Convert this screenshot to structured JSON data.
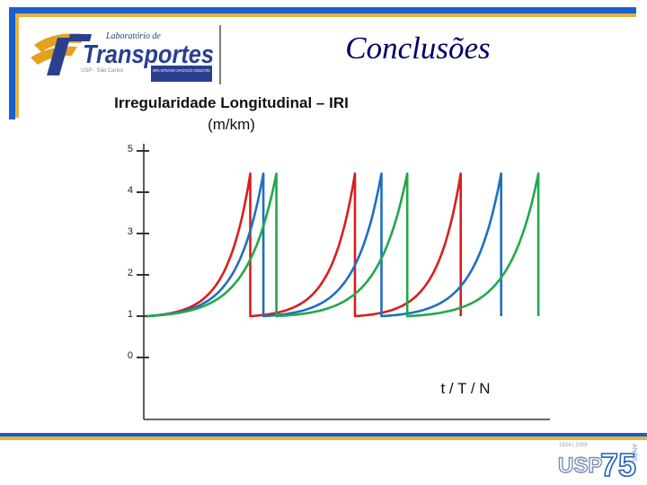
{
  "slide": {
    "title": "Conclusões"
  },
  "logo": {
    "top_text": "Laboratório de",
    "main_text": "Transportes",
    "sub_text": "USP · São Carlos",
    "tag_text": "INFRA-ESTRUTURA CAPACITAÇÃO CONSULTORIA"
  },
  "usp_logo": {
    "years_text": "1934 | 2009",
    "main_text": "USP",
    "number_text": "75",
    "side_text": "ANOS"
  },
  "colors": {
    "header_blue": "#1a5fd0",
    "header_gold": "#e8b23a",
    "title": "#000066",
    "axis": "#333333"
  },
  "chart_data": {
    "type": "line",
    "title": "Irregularidade Longitudinal – IRI",
    "title_line2": "(m/km)",
    "xlabel": "t / T / N",
    "ylabel": "",
    "ylim": [
      0,
      5
    ],
    "yticks": [
      "0",
      "1",
      "2",
      "3",
      "4",
      "5"
    ],
    "xlim": [
      0,
      100
    ],
    "grid": false,
    "series": [
      {
        "color": "#d81e1e",
        "points": [
          [
            0,
            1
          ],
          [
            26.2,
            4.45
          ],
          [
            26.2,
            1
          ],
          [
            52.6,
            4.45
          ],
          [
            52.6,
            1
          ],
          [
            79.3,
            4.45
          ],
          [
            79.3,
            1
          ]
        ]
      },
      {
        "color": "#1f6fc0",
        "points": [
          [
            0,
            1
          ],
          [
            29.5,
            4.45
          ],
          [
            29.5,
            1
          ],
          [
            59.3,
            4.45
          ],
          [
            59.3,
            1
          ],
          [
            89.5,
            4.45
          ],
          [
            89.5,
            1
          ]
        ]
      },
      {
        "color": "#22a84a",
        "points": [
          [
            0,
            1
          ],
          [
            32.8,
            4.45
          ],
          [
            32.8,
            1
          ],
          [
            65.8,
            4.45
          ],
          [
            65.8,
            1
          ],
          [
            98.9,
            4.45
          ],
          [
            98.9,
            1
          ]
        ]
      }
    ]
  }
}
